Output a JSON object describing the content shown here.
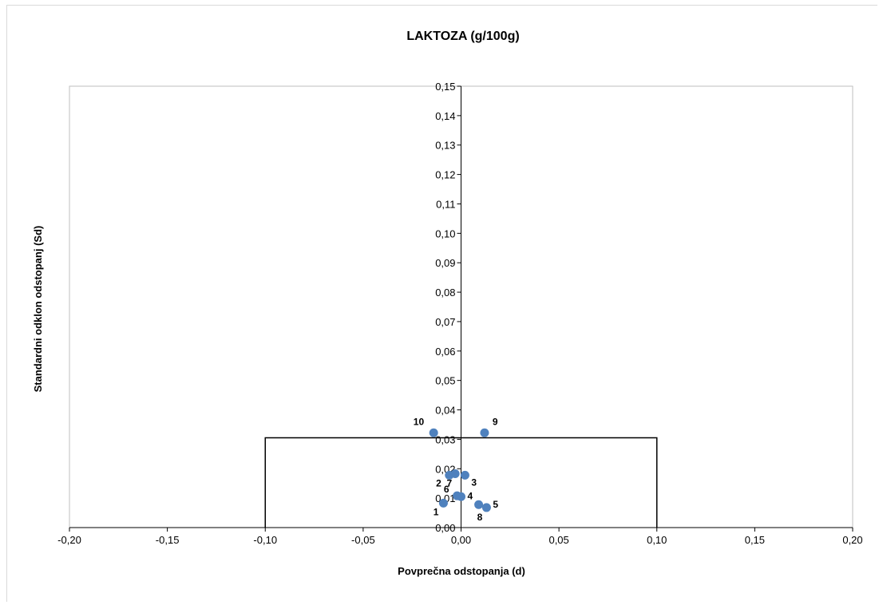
{
  "chart_data": {
    "type": "scatter",
    "title": "LAKTOZA (g/100g)",
    "xlabel": "Povprečna odstopanja (d)",
    "ylabel": "Standardni odklon odstopanj (Sd)",
    "xlim": [
      -0.2,
      0.2
    ],
    "ylim": [
      0.0,
      0.15
    ],
    "x_ticks": [
      "-0,20",
      "-0,15",
      "-0,10",
      "-0,05",
      "0,00",
      "0,05",
      "0,10",
      "0,15",
      "0,20"
    ],
    "y_ticks": [
      "0,00",
      "0,01",
      "0,02",
      "0,03",
      "0,04",
      "0,05",
      "0,06",
      "0,07",
      "0,08",
      "0,09",
      "0,10",
      "0,11",
      "0,12",
      "0,13",
      "0,14",
      "0,15"
    ],
    "grid": false,
    "legend": "none",
    "marker_color": "#4f81bd",
    "points": [
      {
        "label": "1",
        "x": -0.009,
        "y": 0.0083
      },
      {
        "label": "2",
        "x": -0.006,
        "y": 0.0178
      },
      {
        "label": "3",
        "x": 0.002,
        "y": 0.0178
      },
      {
        "label": "4",
        "x": 0.0,
        "y": 0.0105
      },
      {
        "label": "5",
        "x": 0.013,
        "y": 0.0068
      },
      {
        "label": "6",
        "x": -0.002,
        "y": 0.0108
      },
      {
        "label": "7",
        "x": -0.003,
        "y": 0.0183
      },
      {
        "label": "8",
        "x": 0.009,
        "y": 0.0078
      },
      {
        "label": "9",
        "x": 0.012,
        "y": 0.0322
      },
      {
        "label": "10",
        "x": -0.014,
        "y": 0.0322
      }
    ],
    "limit_box": {
      "x_min": -0.1,
      "x_max": 0.1,
      "y_max": 0.0305
    }
  }
}
